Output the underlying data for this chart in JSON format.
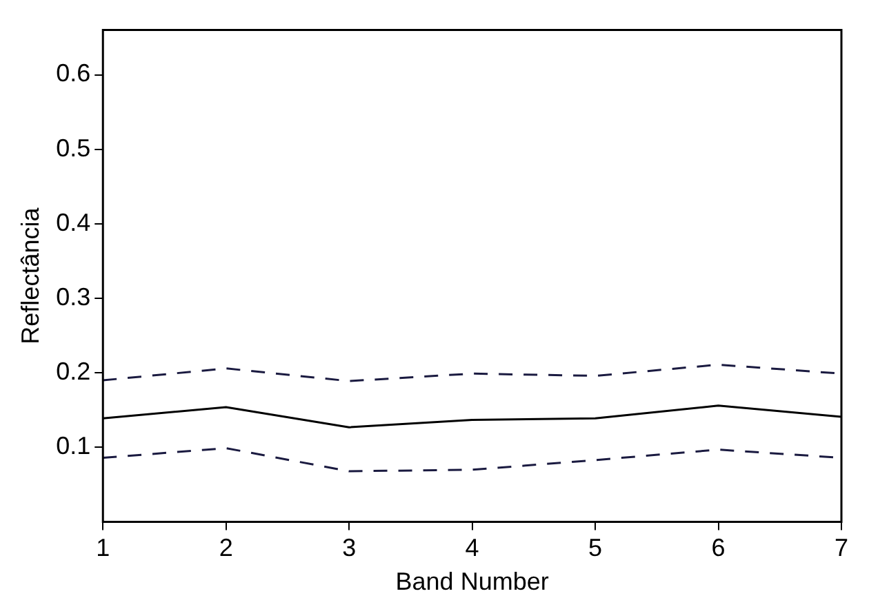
{
  "chart_data": {
    "type": "line",
    "xlabel": "Band Number",
    "ylabel": "Reflectância",
    "x": [
      1,
      2,
      3,
      4,
      5,
      6,
      7
    ],
    "series": [
      {
        "color": "#1a1a40",
        "line_style": "dashed",
        "values": [
          0.19,
          0.206,
          0.189,
          0.199,
          0.196,
          0.211,
          0.199
        ]
      },
      {
        "color": "#000000",
        "line_style": "solid",
        "values": [
          0.139,
          0.154,
          0.127,
          0.137,
          0.139,
          0.156,
          0.141
        ]
      },
      {
        "color": "#1a1a40",
        "line_style": "dashed",
        "values": [
          0.086,
          0.099,
          0.068,
          0.07,
          0.083,
          0.097,
          0.086
        ]
      }
    ],
    "xlim": [
      1,
      7
    ],
    "xticks": [
      1,
      2,
      3,
      4,
      5,
      6,
      7
    ],
    "ylim": [
      0,
      0.66
    ],
    "yticks": [
      0.1,
      0.2,
      0.3,
      0.4,
      0.5,
      0.6
    ],
    "grid": false,
    "legend": false,
    "marker": "none"
  }
}
